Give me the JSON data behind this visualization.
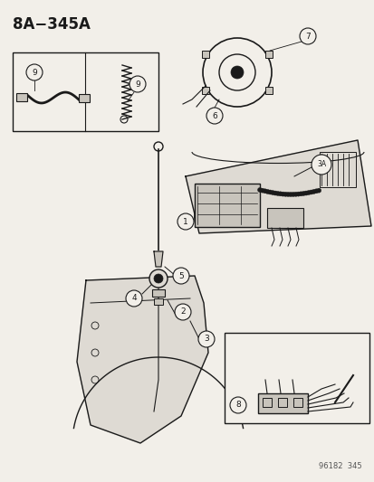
{
  "title": "8A−345A",
  "bg": "#f2efe9",
  "fg": "#1a1a1a",
  "footer": "96182  345",
  "gray_fill": "#c8c4bc",
  "light_gray": "#dedad3"
}
